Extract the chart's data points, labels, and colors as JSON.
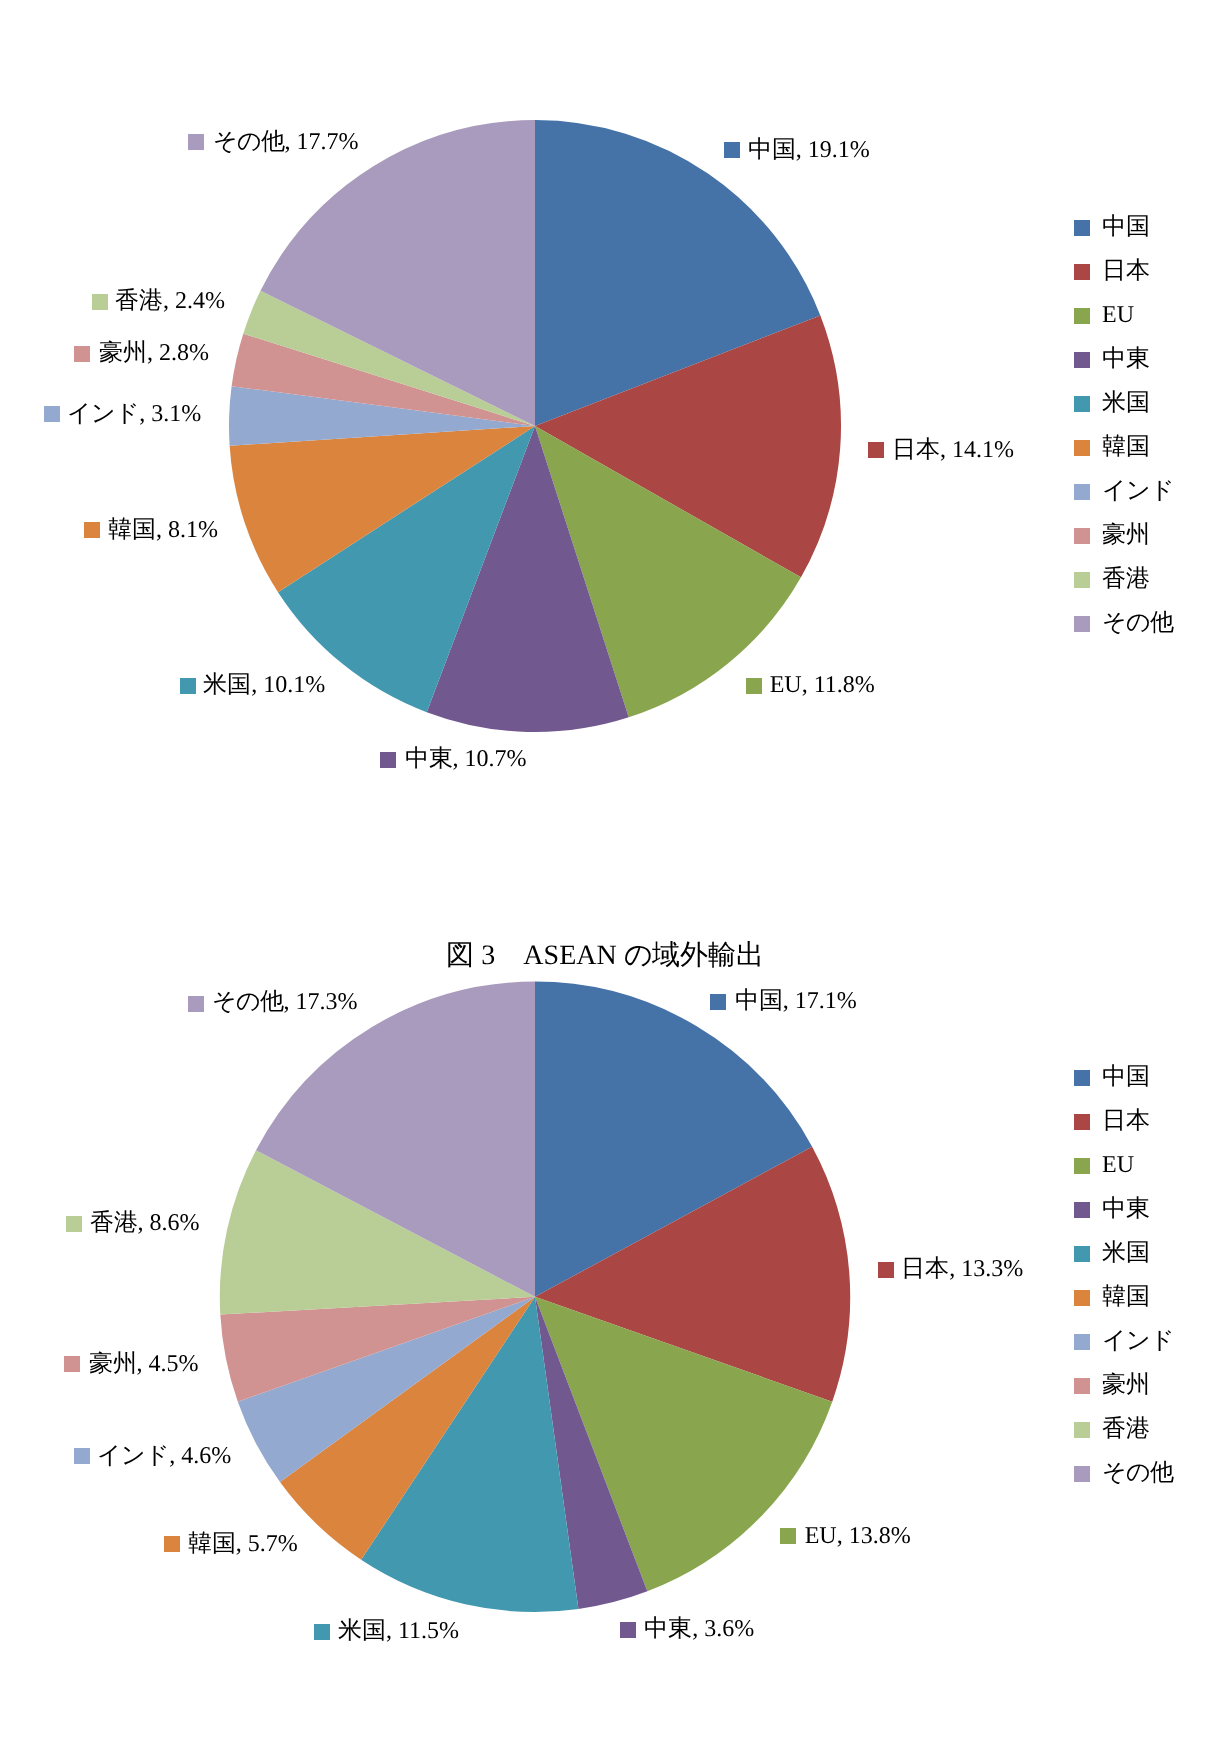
{
  "chart_data": [
    {
      "type": "pie",
      "categories": [
        "中国",
        "日本",
        "EU",
        "中東",
        "米国",
        "韓国",
        "インド",
        "豪州",
        "香港",
        "その他"
      ],
      "values": [
        19.1,
        14.1,
        11.8,
        10.7,
        10.1,
        8.1,
        3.1,
        2.8,
        2.4,
        17.7
      ],
      "value_labels": [
        "中国, 19.1%",
        "日本, 14.1%",
        "EU, 11.8%",
        "中東, 10.7%",
        "米国, 10.1%",
        "韓国, 8.1%",
        "インド, 3.1%",
        "豪州, 2.8%",
        "香港, 2.4%",
        "その他, 17.7%"
      ],
      "colors": [
        "#4572a7",
        "#aa4643",
        "#89a54e",
        "#71588f",
        "#4198af",
        "#db843d",
        "#93a9cf",
        "#d19392",
        "#b9cd96",
        "#a99bbd"
      ],
      "legend": "right"
    },
    {
      "type": "pie",
      "title": "図 3　ASEAN の域外輸出",
      "categories": [
        "中国",
        "日本",
        "EU",
        "中東",
        "米国",
        "韓国",
        "インド",
        "豪州",
        "香港",
        "その他"
      ],
      "values": [
        17.1,
        13.3,
        13.8,
        3.6,
        11.5,
        5.7,
        4.6,
        4.5,
        8.6,
        17.3
      ],
      "value_labels": [
        "中国, 17.1%",
        "日本, 13.3%",
        "EU, 13.8%",
        "中東, 3.6%",
        "米国, 11.5%",
        "韓国, 5.7%",
        "インド, 4.6%",
        "豪州, 4.5%",
        "香港, 8.6%",
        "その他, 17.3%"
      ],
      "colors": [
        "#4572a7",
        "#aa4643",
        "#89a54e",
        "#71588f",
        "#4198af",
        "#db843d",
        "#93a9cf",
        "#d19392",
        "#b9cd96",
        "#a99bbd"
      ],
      "legend": "right"
    }
  ]
}
